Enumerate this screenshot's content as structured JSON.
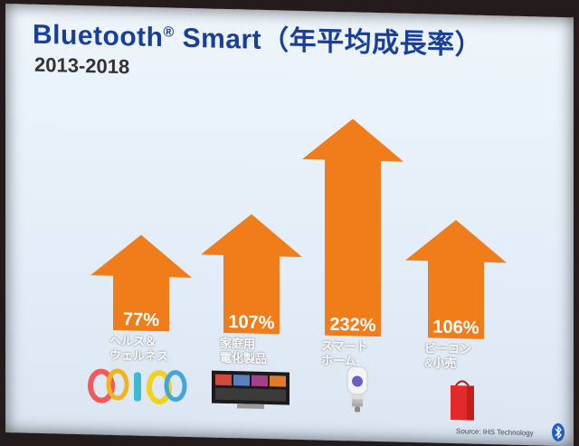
{
  "slide": {
    "title": "Bluetooth",
    "title_mark": "®",
    "title_rest": " Smart（年平均成長率）",
    "subtitle": "2013-2018",
    "source": "Source: IHS Technology"
  },
  "colors": {
    "arrow": "#f07d1a",
    "title": "#1a3f9a",
    "value_text": "#ffffff"
  },
  "chart_data": {
    "type": "bar",
    "title": "Bluetooth® Smart（年平均成長率）",
    "subtitle": "2013-2018",
    "categories": [
      "ヘルス＆\nウェルネス",
      "家庭用\n電化製品",
      "スマート\nホーム",
      "ビーコン\n&小売"
    ],
    "values": [
      77,
      107,
      232,
      106
    ],
    "value_labels": [
      "77%",
      "107%",
      "232%",
      "106%"
    ],
    "ylim": [
      0,
      232
    ],
    "mark": "upward arrow"
  },
  "icons": [
    "wristband-icon",
    "smart-tv-icon",
    "smart-bulb-icon",
    "shopping-bag-icon"
  ]
}
